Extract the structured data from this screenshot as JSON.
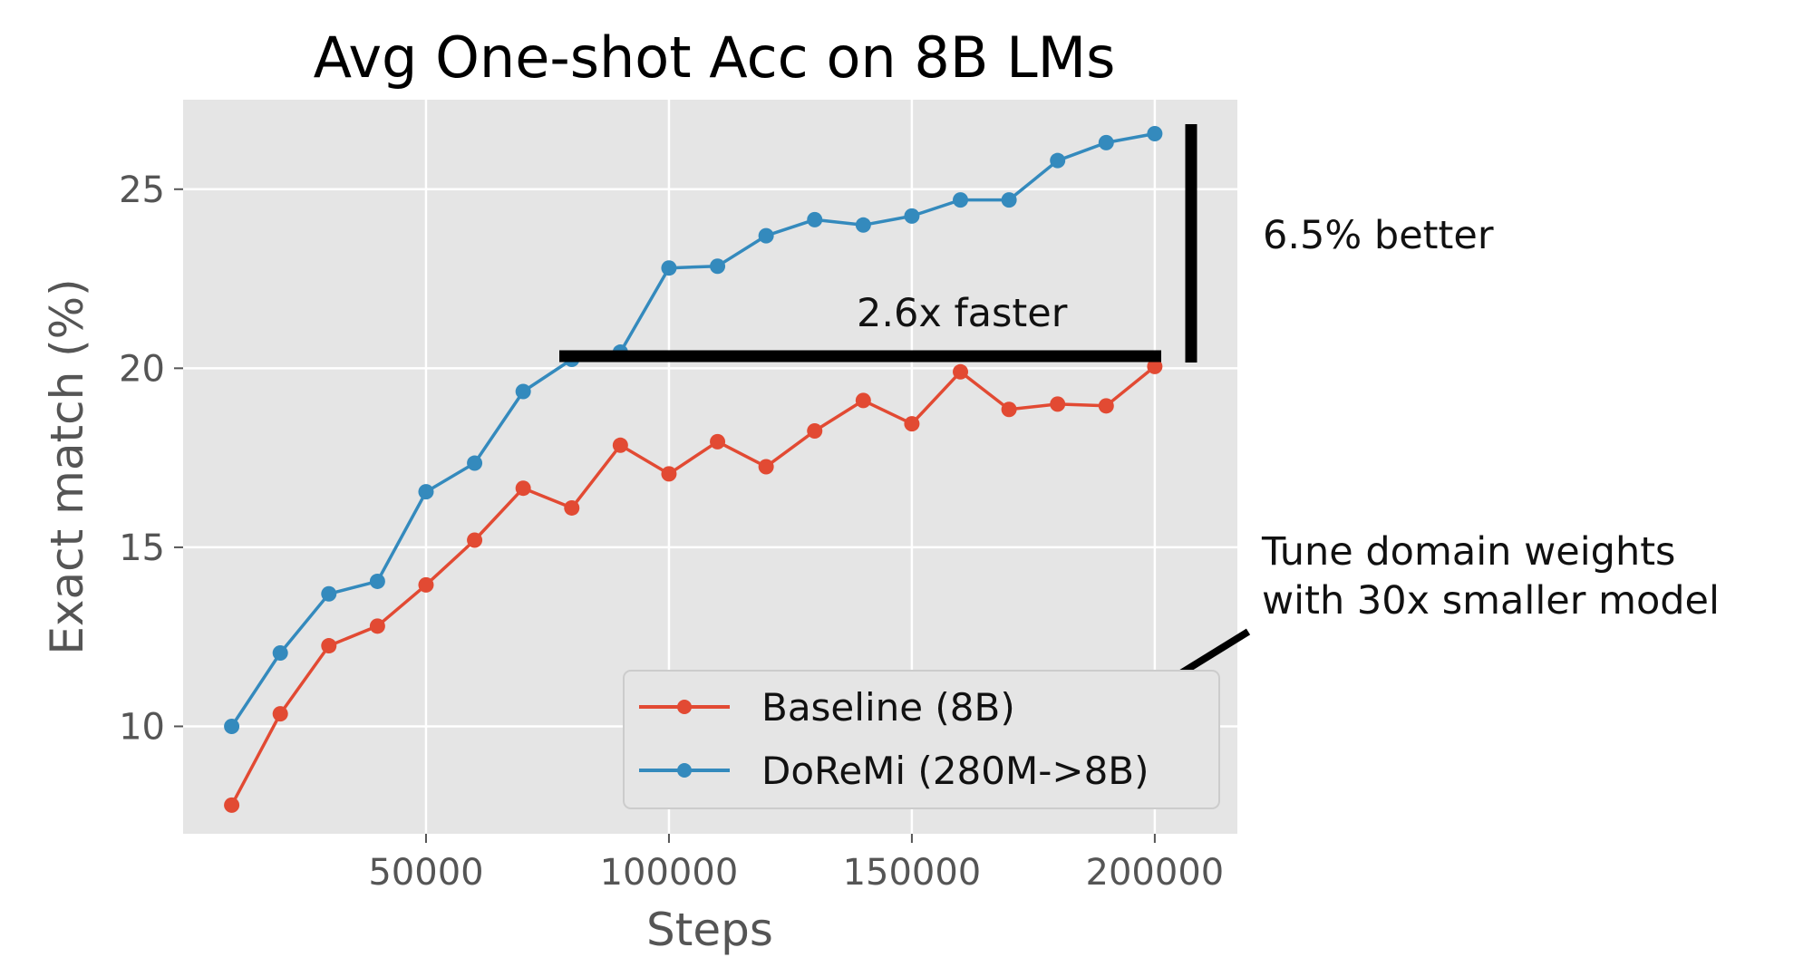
{
  "chart_data": {
    "type": "line",
    "title": "Avg One-shot Acc on 8B LMs",
    "xlabel": "Steps",
    "ylabel": "Exact match (%)",
    "xlim": [
      0,
      217000
    ],
    "ylim": [
      7.0,
      27.5
    ],
    "xticks": [
      50000,
      100000,
      150000,
      200000
    ],
    "yticks": [
      10,
      15,
      20,
      25
    ],
    "grid": true,
    "legend": "lower-right",
    "x": [
      10000,
      20000,
      30000,
      40000,
      50000,
      60000,
      70000,
      80000,
      90000,
      100000,
      110000,
      120000,
      130000,
      140000,
      150000,
      160000,
      170000,
      180000,
      190000,
      200000
    ],
    "series": [
      {
        "name": "Baseline (8B)",
        "color": "#E24A33",
        "values": [
          7.8,
          10.35,
          12.25,
          12.8,
          13.95,
          15.2,
          16.65,
          16.1,
          17.85,
          17.05,
          17.95,
          17.25,
          18.25,
          19.1,
          18.45,
          19.9,
          18.85,
          19.0,
          18.95,
          20.05
        ]
      },
      {
        "name": "DoReMi (280M->8B)",
        "color": "#348ABD",
        "values": [
          10.0,
          12.05,
          13.7,
          14.05,
          16.55,
          17.35,
          19.35,
          20.25,
          20.45,
          22.8,
          22.85,
          23.7,
          24.15,
          24.0,
          24.25,
          24.7,
          24.7,
          25.8,
          26.3,
          26.55
        ]
      }
    ],
    "annotations": {
      "faster": "2.6x faster",
      "better": "6.5% better",
      "tune_line1": "Tune domain weights",
      "tune_line2": "with 30x smaller model"
    }
  }
}
